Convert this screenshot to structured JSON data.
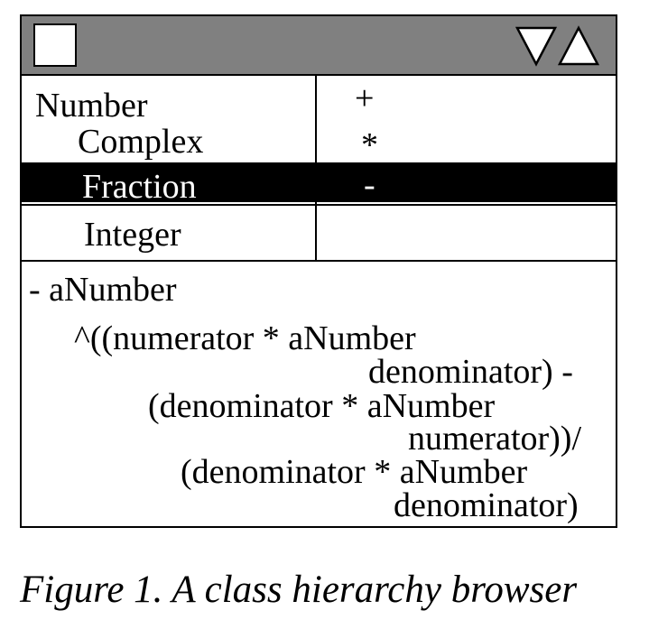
{
  "window": {
    "icons": {
      "close": "close-box-icon",
      "scroll_down": "triangle-down-icon",
      "scroll_up": "triangle-up-icon"
    },
    "colors": {
      "titlebar": "#808080",
      "selection": "#000000",
      "selected_text": "#ffffff"
    }
  },
  "class_list": [
    {
      "label": "Number",
      "selected": false
    },
    {
      "label": "Complex",
      "selected": false
    },
    {
      "label": "Fraction",
      "selected": true
    },
    {
      "label": "Integer",
      "selected": false
    }
  ],
  "method_list": [
    {
      "label": "+",
      "selected": false
    },
    {
      "label": "*",
      "selected": false
    },
    {
      "label": "-",
      "selected": true
    }
  ],
  "code": [
    "- aNumber",
    "^((numerator * aNumber",
    "denominator) -",
    "(denominator * aNumber",
    "numerator))/",
    "(denominator * aNumber",
    "denominator)"
  ],
  "caption": "Figure 1. A class hierarchy browser"
}
